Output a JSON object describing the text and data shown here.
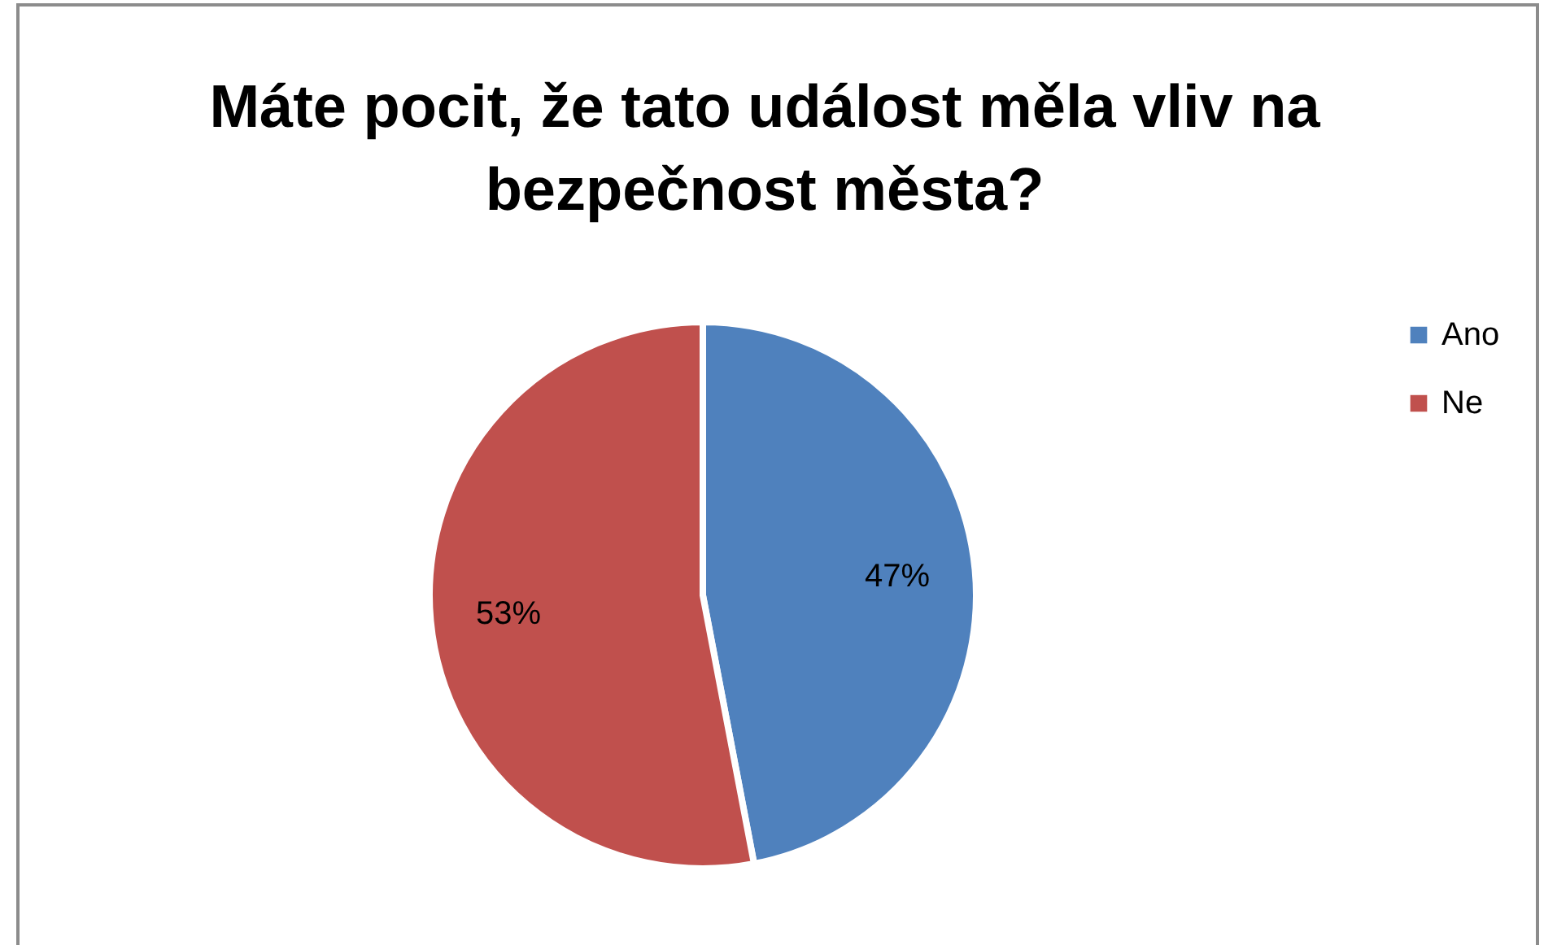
{
  "chart_data": {
    "type": "pie",
    "title": "Máte pocit, že tato událost měla vliv na bezpečnost města?",
    "categories": [
      "Ano",
      "Ne"
    ],
    "values": [
      47,
      53
    ],
    "colors": [
      "#4f81bd",
      "#c0504d"
    ],
    "value_labels": [
      "47%",
      "53%"
    ],
    "legend": "right"
  }
}
